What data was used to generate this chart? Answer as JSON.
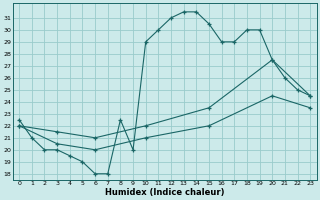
{
  "xlabel": "Humidex (Indice chaleur)",
  "background_color": "#cceaea",
  "grid_color": "#99cccc",
  "line_color": "#1a6666",
  "ylim": [
    17.5,
    32.2
  ],
  "xlim": [
    -0.5,
    23.5
  ],
  "yticks": [
    18,
    19,
    20,
    21,
    22,
    23,
    24,
    25,
    26,
    27,
    28,
    29,
    30,
    31
  ],
  "xticks": [
    0,
    1,
    2,
    3,
    4,
    5,
    6,
    7,
    8,
    9,
    10,
    11,
    12,
    13,
    14,
    15,
    16,
    17,
    18,
    19,
    20,
    21,
    22,
    23
  ],
  "line1_x": [
    0,
    1,
    2,
    3,
    4,
    5,
    6,
    7,
    8,
    9,
    10,
    11,
    12,
    13,
    14,
    15,
    16,
    17,
    18,
    19,
    20,
    21,
    22,
    23
  ],
  "line1_y": [
    22.5,
    21.0,
    20.0,
    20.0,
    19.5,
    19.0,
    18.0,
    18.0,
    22.5,
    20.0,
    29.0,
    30.0,
    31.0,
    31.5,
    31.5,
    30.5,
    29.0,
    29.0,
    30.0,
    30.0,
    27.5,
    26.0,
    25.0,
    24.5
  ],
  "line2_x": [
    0,
    3,
    6,
    10,
    15,
    20,
    23
  ],
  "line2_y": [
    22.0,
    21.5,
    21.0,
    22.0,
    23.5,
    27.5,
    24.5
  ],
  "line3_x": [
    0,
    3,
    6,
    10,
    15,
    20,
    23
  ],
  "line3_y": [
    22.0,
    20.5,
    20.0,
    21.0,
    22.0,
    24.5,
    23.5
  ]
}
